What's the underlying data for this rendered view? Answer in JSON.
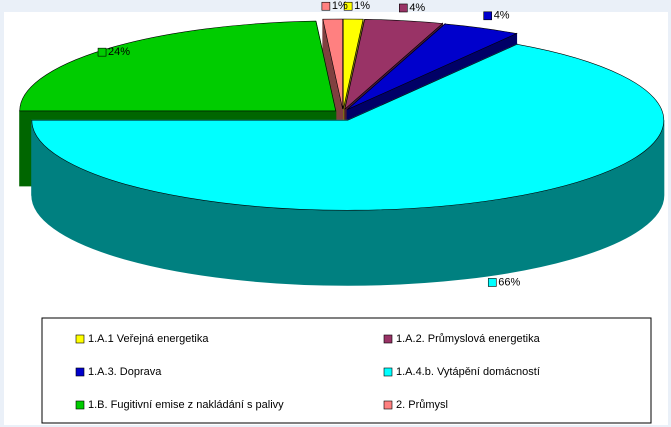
{
  "chart_data": {
    "type": "pie3d",
    "categories": [
      "1.A.1 Veřejná energetika",
      "1.A.2. Průmyslová energetika",
      "1.A.3. Doprava",
      "1.A.4.b. Vytápění domácností",
      "1.B. Fugitivní emise z nakládání s palivy",
      "2. Průmysl"
    ],
    "values": [
      1,
      4,
      4,
      66,
      24,
      1
    ],
    "value_labels": [
      "1%",
      "4%",
      "4%",
      "66%",
      "24%",
      "1%"
    ],
    "colors": [
      "#ffff00",
      "#993366",
      "#0000cc",
      "#00ffff",
      "#00cc00",
      "#ff8080"
    ],
    "legend": "bottom"
  }
}
